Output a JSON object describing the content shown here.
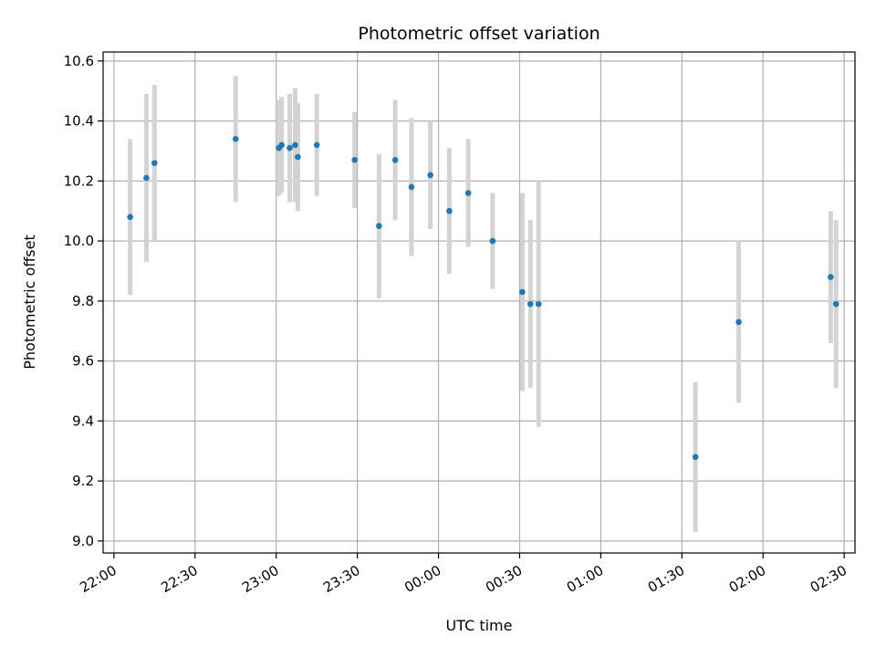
{
  "chart_data": {
    "type": "scatter",
    "title": "Photometric offset variation",
    "xlabel": "UTC time",
    "ylabel": "Photometric offset",
    "grid": true,
    "x_ticks": [
      "22:00",
      "22:30",
      "23:00",
      "23:30",
      "00:00",
      "00:30",
      "01:00",
      "01:30",
      "02:00",
      "02:30"
    ],
    "xlim": [
      "21:56",
      "02:34"
    ],
    "ylim": [
      8.96,
      10.63
    ],
    "y_ticks": [
      9.0,
      9.2,
      9.4,
      9.6,
      9.8,
      10.0,
      10.2,
      10.4,
      10.6
    ],
    "point_color": "#1f77b4",
    "errorbar_color": "#d3d3d3",
    "points": [
      {
        "x": "22:06",
        "y": 10.08,
        "yerr": 0.26
      },
      {
        "x": "22:12",
        "y": 10.21,
        "yerr": 0.28
      },
      {
        "x": "22:15",
        "y": 10.26,
        "yerr": 0.26
      },
      {
        "x": "22:45",
        "y": 10.34,
        "yerr": 0.21
      },
      {
        "x": "23:01",
        "y": 10.31,
        "yerr": 0.16
      },
      {
        "x": "23:02",
        "y": 10.32,
        "yerr": 0.16
      },
      {
        "x": "23:05",
        "y": 10.31,
        "yerr": 0.18
      },
      {
        "x": "23:07",
        "y": 10.32,
        "yerr": 0.19
      },
      {
        "x": "23:08",
        "y": 10.28,
        "yerr": 0.18
      },
      {
        "x": "23:15",
        "y": 10.32,
        "yerr": 0.17
      },
      {
        "x": "23:29",
        "y": 10.27,
        "yerr": 0.16
      },
      {
        "x": "23:38",
        "y": 10.05,
        "yerr": 0.24
      },
      {
        "x": "23:44",
        "y": 10.27,
        "yerr": 0.2
      },
      {
        "x": "23:50",
        "y": 10.18,
        "yerr": 0.23
      },
      {
        "x": "23:57",
        "y": 10.22,
        "yerr": 0.18
      },
      {
        "x": "00:04",
        "y": 10.1,
        "yerr": 0.21
      },
      {
        "x": "00:11",
        "y": 10.16,
        "yerr": 0.18
      },
      {
        "x": "00:20",
        "y": 10.0,
        "yerr": 0.16
      },
      {
        "x": "00:31",
        "y": 9.83,
        "yerr": 0.33
      },
      {
        "x": "00:34",
        "y": 9.79,
        "yerr": 0.28
      },
      {
        "x": "00:37",
        "y": 9.79,
        "yerr": 0.41
      },
      {
        "x": "01:35",
        "y": 9.28,
        "yerr": 0.25
      },
      {
        "x": "01:51",
        "y": 9.73,
        "yerr": 0.27
      },
      {
        "x": "02:25",
        "y": 9.88,
        "yerr": 0.22
      },
      {
        "x": "02:27",
        "y": 9.79,
        "yerr": 0.28
      }
    ]
  }
}
